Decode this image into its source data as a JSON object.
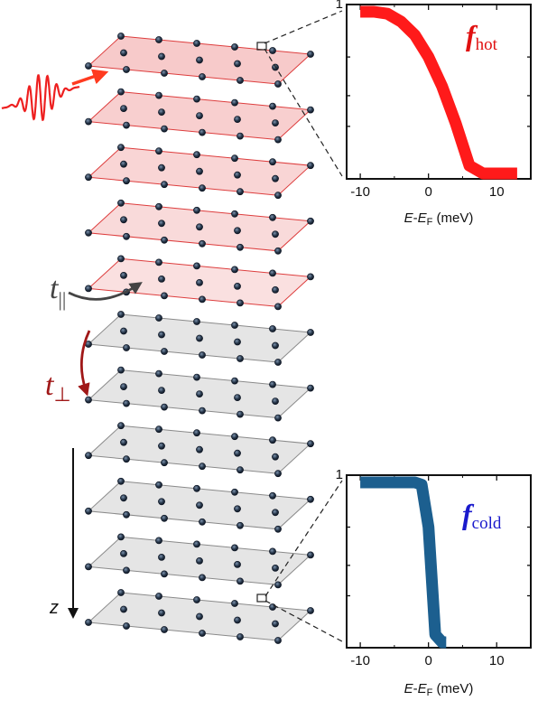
{
  "colors": {
    "hot": "#ff1a1a",
    "cold": "#1c5f8f",
    "hot_label": "#e01010",
    "cold_label": "#1a1acc",
    "hop_perp": "#a01818",
    "hop_par": "#444444",
    "atom": "#2a3a4e",
    "hot_layer_fill": "#f7caca",
    "hot_layer_edge": "#dd3d3d",
    "cold_layer_fill": "#dcdcdc",
    "cold_layer_edge": "#8a8a8a"
  },
  "stack": {
    "layer_count": 11,
    "labels": {
      "t_parallel": "t",
      "t_parallel_sub": "||",
      "t_perp": "t",
      "t_perp_sub": "⊥",
      "z": "z"
    }
  },
  "icons": {
    "pulse": "laser-pulse-wave-icon",
    "arrow": "arrow-icon"
  },
  "chart_data": [
    {
      "name": "hot",
      "type": "line",
      "label_main": "f",
      "label_sub": "hot",
      "xlabel_parts": [
        "E",
        "-",
        "E",
        "F",
        " (meV)"
      ],
      "xticks": [
        -10,
        0,
        10
      ],
      "xtick_labels": [
        "-10",
        "0",
        "10"
      ],
      "xlim": [
        -12,
        15
      ],
      "ytick_labels": [
        "1"
      ],
      "ylim_log": [
        0.1,
        1
      ],
      "log_scale_y": true,
      "temperature_meV": 3,
      "x": [
        -10,
        -8,
        -6,
        -4,
        -2,
        0,
        2,
        4,
        6,
        8,
        10,
        12,
        13
      ],
      "y": [
        0.96,
        0.935,
        0.885,
        0.797,
        0.668,
        0.5,
        0.339,
        0.208,
        0.119,
        0.065,
        0.0344,
        0.018,
        0.0131
      ]
    },
    {
      "name": "cold",
      "type": "line",
      "label_main": "f",
      "label_sub": "cold",
      "xlabel_parts": [
        "E",
        "-",
        "E",
        "F",
        " (meV)"
      ],
      "xticks": [
        -10,
        0,
        10
      ],
      "xtick_labels": [
        "-10",
        "0",
        "10"
      ],
      "xlim": [
        -12,
        15
      ],
      "ytick_labels": [
        "1"
      ],
      "ylim_log": [
        0.1,
        1
      ],
      "log_scale_y": true,
      "temperature_meV": 0.5,
      "x": [
        -10,
        -4,
        -2,
        -1,
        0,
        1,
        2,
        2.6
      ],
      "y": [
        1.0,
        0.9997,
        0.982,
        0.881,
        0.5,
        0.119,
        0.018,
        0.0055
      ]
    }
  ]
}
